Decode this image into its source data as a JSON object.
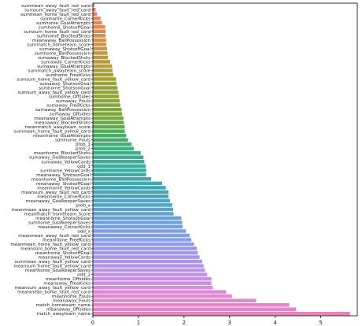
{
  "chart_data": {
    "type": "bar",
    "orientation": "horizontal",
    "title": "",
    "xlabel": "",
    "ylabel": "",
    "xlim": [
      0,
      5.8
    ],
    "xticks": [
      0,
      1,
      2,
      3,
      4,
      5
    ],
    "grid": false,
    "palette": "husl-gradient (orange → olive → green → teal → blue → purple → pink)",
    "categories": [
      "summean_away_fault_red_card",
      "sumsum_away_fault_red_card",
      "summean_home_fault_red_card",
      "sumhome_CornerKicks",
      "sumhome_GoalAttempts",
      "sumhome_ShotsoffGoal",
      "sumsum_home_fault_red_card",
      "sumhome_BlockedShots",
      "meanaway_BallPossession",
      "summatch_hometeam_score",
      "sumaway_ShotsoffGoal",
      "sumhome_BallPossession",
      "sumaway_BlockedShots",
      "sumaway_CornerKicks",
      "sumaway_GoalAttempts",
      "summatch_awayteam_score",
      "sumhome_FreeKicks",
      "sumsum_home_fault_yellow_card",
      "sumaway_ShotsonGoal",
      "sumhome_ShotsonGoal",
      "sumsum_away_fault_yellow_card",
      "sumhome_Offsides",
      "sumaway_Fouls",
      "sumaway_FreeKicks",
      "sumaway_BallPossession",
      "sumaway_Offsides",
      "meanaway_GoalAttempts",
      "meanaway_BlockedShots",
      "meanmatch_awayteam_score",
      "summean_home_fault_yellow_card",
      "meanhome_GoalAttempts",
      "sumhome_Fouls",
      "prob_1",
      "prob_2",
      "meanhome_BlockedShots",
      "sumaway_GoalkeeperSaves",
      "sumaway_YellowCards",
      "odd_1",
      "sumhome_YellowCards",
      "meanaway_ShotsonGoal",
      "meanhome_BallPossession",
      "meanaway_ShotsoffGoal",
      "meanhome_YellowCards",
      "meansum_away_fault_red_card",
      "meanhome_CornerKicks",
      "meanaway_GoalkeeperSaves",
      "prob_x",
      "meanmean_away_fault_yellow_card",
      "meanmatch_hometeam_score",
      "meanhome_ShotsonGoal",
      "sumhome_GoalkeeperSaves",
      "meanaway_CornerKicks",
      "odd_x",
      "meanmean_away_fault_red_card",
      "meanhome_FreeKicks",
      "meanmean_home_fault_yellow_card",
      "meansum_home_fault_red_card",
      "meanhome_ShotsoffGoal",
      "meanaway_YellowCards",
      "summean_away_fault_yellow_card",
      "meansum_home_fault_yellow_card",
      "meanhome_GoalkeeperSaves",
      "odd_2",
      "meanhome_Offsides",
      "meanaway_FreeKicks",
      "meansum_away_fault_yellow_card",
      "meanmean_home_fault_red_card",
      "meanhome_Fouls",
      "meanaway_Fouls",
      "match_hometeam_name",
      "meanaway_Offsides",
      "match_awayteam_name"
    ],
    "values": [
      0.03,
      0.06,
      0.09,
      0.17,
      0.2,
      0.27,
      0.28,
      0.28,
      0.29,
      0.29,
      0.31,
      0.32,
      0.33,
      0.38,
      0.42,
      0.43,
      0.45,
      0.51,
      0.52,
      0.54,
      0.56,
      0.57,
      0.59,
      0.6,
      0.63,
      0.64,
      0.67,
      0.68,
      0.7,
      0.7,
      0.73,
      0.77,
      0.85,
      0.9,
      1.05,
      1.11,
      1.13,
      1.16,
      1.17,
      1.17,
      1.28,
      1.52,
      1.6,
      1.66,
      1.66,
      1.69,
      1.74,
      1.76,
      1.77,
      1.94,
      1.96,
      1.97,
      2.04,
      2.12,
      2.16,
      2.22,
      2.28,
      2.3,
      2.34,
      2.4,
      2.43,
      2.46,
      2.51,
      2.6,
      2.6,
      2.63,
      2.92,
      3.05,
      3.58,
      4.31,
      4.46,
      5.64
    ]
  }
}
